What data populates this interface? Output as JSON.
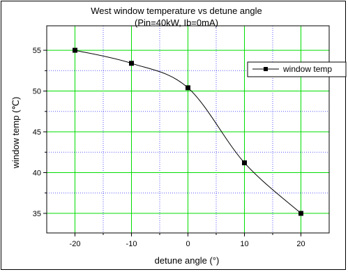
{
  "chart_data": {
    "type": "line",
    "title": "West window temperature vs detune angle",
    "subtitle": "(Pin=40kW, Ib=0mA)",
    "xlabel": "detune angle (°)",
    "ylabel": "window temp (℃)",
    "xlim": [
      -25,
      25
    ],
    "ylim": [
      32.6,
      58.0
    ],
    "xticks": [
      -20,
      -10,
      0,
      10,
      20
    ],
    "xtick_labels": [
      "-20",
      "-10",
      "0",
      "10",
      "20"
    ],
    "yticks": [
      35,
      40,
      45,
      50,
      55
    ],
    "ytick_labels": [
      "35",
      "40",
      "45",
      "50",
      "55"
    ],
    "grid": {
      "major_color": "#00dd00",
      "minor_color": "#5555ff",
      "x_major": [
        -20,
        -10,
        0,
        10,
        20
      ],
      "x_minor": [
        -15,
        -5,
        5,
        15
      ],
      "y_major": [
        35,
        40,
        45,
        50,
        55
      ],
      "y_minor": [
        37.5,
        42.5,
        47.5,
        52.5
      ]
    },
    "legend": {
      "position": "right",
      "entries": [
        "window temp"
      ]
    },
    "series": [
      {
        "name": "window temp",
        "color": "#000000",
        "marker": "square",
        "x": [
          -20,
          -10,
          0,
          10,
          20
        ],
        "y": [
          55.0,
          53.4,
          50.4,
          41.2,
          35.0
        ]
      }
    ]
  }
}
